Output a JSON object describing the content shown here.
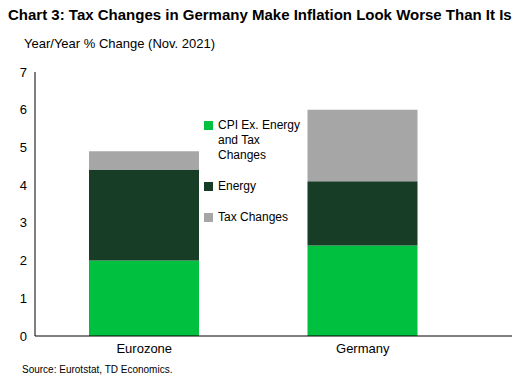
{
  "chart_data": {
    "type": "bar",
    "title": "Chart 3: Tax Changes in Germany Make Inflation Look Worse Than It Is",
    "y_label": "Year/Year % Change (Nov. 2021)",
    "source": "Source: Eurotstat, TD Economics.",
    "categories": [
      "Eurozone",
      "Germany"
    ],
    "series": [
      {
        "name": "CPI Ex. Energy and Tax Changes",
        "color": "#00c040",
        "values": [
          2.0,
          2.4
        ]
      },
      {
        "name": "Energy",
        "color": "#183d27",
        "values": [
          2.4,
          1.7
        ]
      },
      {
        "name": "Tax Changes",
        "color": "#a6a6a6",
        "values": [
          0.5,
          1.9
        ]
      }
    ],
    "ylim": [
      0,
      7
    ],
    "yticks": [
      0,
      1,
      2,
      3,
      4,
      5,
      6,
      7
    ],
    "stacked": true,
    "grid": false,
    "legend": "top"
  }
}
